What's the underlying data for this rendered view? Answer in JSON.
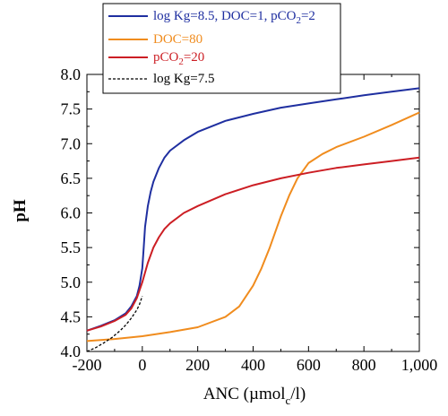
{
  "chart_data": {
    "type": "line",
    "xlabel": "ANC (µmol",
    "xlabel_sub": "c",
    "xlabel_end": "/l)",
    "ylabel": "pH",
    "xlim": [
      -200,
      1000
    ],
    "ylim": [
      4.0,
      8.0
    ],
    "x_ticks": [
      -200,
      0,
      200,
      400,
      600,
      800,
      1000
    ],
    "x_tick_labels": [
      "-200",
      "0",
      "200",
      "400",
      "600",
      "800",
      "1,000"
    ],
    "y_ticks": [
      4.0,
      4.5,
      5.0,
      5.5,
      6.0,
      6.5,
      7.0,
      7.5,
      8.0
    ],
    "y_tick_labels": [
      "4.0",
      "4.5",
      "5.0",
      "5.5",
      "6.0",
      "6.5",
      "7.0",
      "7.5",
      "8.0"
    ],
    "grid": false,
    "legend_position": "top, above plot",
    "series": [
      {
        "name": "log Kg=8.5, DOC=1, pCO2=2",
        "label_parts": [
          "log Kg=8.5, DOC=1, pCO",
          "2",
          "=2"
        ],
        "color": "#1f2fa0",
        "style": "solid",
        "x": [
          -200,
          -150,
          -100,
          -60,
          -40,
          -20,
          -10,
          0,
          5,
          10,
          20,
          30,
          40,
          60,
          80,
          100,
          150,
          200,
          300,
          400,
          500,
          600,
          700,
          800,
          900,
          1000
        ],
        "y": [
          4.3,
          4.37,
          4.45,
          4.55,
          4.65,
          4.8,
          4.95,
          5.2,
          5.5,
          5.8,
          6.1,
          6.3,
          6.45,
          6.65,
          6.8,
          6.9,
          7.05,
          7.17,
          7.33,
          7.43,
          7.52,
          7.58,
          7.64,
          7.7,
          7.75,
          7.8
        ]
      },
      {
        "name": "DOC=80",
        "label_parts": [
          "DOC=80"
        ],
        "color": "#f08c1e",
        "style": "solid",
        "x": [
          -200,
          -100,
          0,
          100,
          200,
          300,
          350,
          400,
          430,
          460,
          500,
          530,
          560,
          600,
          650,
          700,
          800,
          900,
          1000
        ],
        "y": [
          4.15,
          4.18,
          4.22,
          4.28,
          4.35,
          4.5,
          4.65,
          4.95,
          5.2,
          5.5,
          5.95,
          6.25,
          6.5,
          6.72,
          6.85,
          6.95,
          7.1,
          7.27,
          7.45
        ]
      },
      {
        "name": "pCO2=20",
        "label_parts": [
          "pCO",
          "2",
          "=20"
        ],
        "color": "#cc1e24",
        "style": "solid",
        "x": [
          -200,
          -150,
          -100,
          -60,
          -40,
          -20,
          0,
          20,
          40,
          60,
          80,
          100,
          150,
          200,
          300,
          400,
          500,
          600,
          700,
          800,
          900,
          1000
        ],
        "y": [
          4.3,
          4.36,
          4.44,
          4.53,
          4.62,
          4.77,
          5.0,
          5.28,
          5.5,
          5.65,
          5.77,
          5.85,
          6.0,
          6.1,
          6.27,
          6.4,
          6.5,
          6.58,
          6.65,
          6.7,
          6.75,
          6.8
        ]
      },
      {
        "name": "log Kg=7.5",
        "label_parts": [
          "log Kg=7.5"
        ],
        "color": "#000000",
        "style": "dashed",
        "x": [
          -200,
          -170,
          -140,
          -110,
          -80,
          -60,
          -40,
          -20,
          -10,
          0
        ],
        "y": [
          4.0,
          4.05,
          4.12,
          4.2,
          4.3,
          4.38,
          4.48,
          4.6,
          4.68,
          4.8
        ]
      }
    ]
  }
}
